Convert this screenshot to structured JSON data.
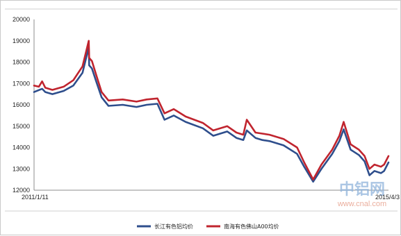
{
  "chart_data": {
    "type": "line",
    "title": "",
    "xlabel": "",
    "ylabel": "",
    "ylim": [
      12000,
      20000
    ],
    "yticks": [
      12000,
      13000,
      14000,
      15000,
      16000,
      17000,
      18000,
      19000,
      20000
    ],
    "x_start_label": "2011/1/11",
    "x_end_label": "2015/4/3",
    "grid": false,
    "legend_position": "bottom",
    "series": [
      {
        "name": "长江有色铝均价",
        "color": "#2e4e8c",
        "x": [
          "2011/1/11",
          "2011/2/15",
          "2011/3/1",
          "2011/4/1",
          "2011/5/20",
          "2011/7/1",
          "2011/8/10",
          "2011/9/6",
          "2011/9/8",
          "2011/9/20",
          "2011/10/10",
          "2011/11/1",
          "2011/12/1",
          "2012/2/1",
          "2012/4/1",
          "2012/5/15",
          "2012/7/1",
          "2012/8/1",
          "2012/9/10",
          "2012/11/1",
          "2013/1/15",
          "2013/3/1",
          "2013/5/1",
          "2013/6/10",
          "2013/7/10",
          "2013/7/25",
          "2013/9/1",
          "2013/10/1",
          "2013/11/1",
          "2014/1/1",
          "2014/3/1",
          "2014/4/1",
          "2014/5/10",
          "2014/6/15",
          "2014/8/1",
          "2014/9/1",
          "2014/9/20",
          "2014/10/20",
          "2014/11/25",
          "2014/12/20",
          "2015/1/10",
          "2015/2/1",
          "2015/3/1",
          "2015/3/15",
          "2015/4/3"
        ],
        "y": [
          16600,
          16750,
          16600,
          16500,
          16650,
          16900,
          17500,
          18700,
          17850,
          17700,
          17050,
          16350,
          15950,
          16000,
          15900,
          16000,
          16050,
          15300,
          15500,
          15200,
          14900,
          14550,
          14750,
          14450,
          14350,
          14800,
          14450,
          14350,
          14300,
          14100,
          13700,
          13100,
          12400,
          13000,
          13700,
          14300,
          14850,
          13900,
          13650,
          13350,
          12700,
          12900,
          12800,
          12900,
          13300
        ]
      },
      {
        "name": "南海有色佛山A00均价",
        "color": "#c0242e",
        "x": [
          "2011/1/11",
          "2011/2/1",
          "2011/2/15",
          "2011/3/1",
          "2011/4/1",
          "2011/5/20",
          "2011/7/1",
          "2011/8/10",
          "2011/9/6",
          "2011/9/8",
          "2011/9/20",
          "2011/10/10",
          "2011/11/1",
          "2011/12/1",
          "2012/2/1",
          "2012/4/1",
          "2012/5/15",
          "2012/7/1",
          "2012/8/1",
          "2012/9/10",
          "2012/11/1",
          "2013/1/15",
          "2013/3/1",
          "2013/5/1",
          "2013/6/10",
          "2013/7/10",
          "2013/7/25",
          "2013/9/1",
          "2013/10/1",
          "2013/11/1",
          "2014/1/1",
          "2014/3/1",
          "2014/4/1",
          "2014/5/10",
          "2014/6/15",
          "2014/8/1",
          "2014/9/1",
          "2014/9/20",
          "2014/10/20",
          "2014/11/25",
          "2014/12/20",
          "2015/1/10",
          "2015/2/1",
          "2015/3/1",
          "2015/3/15",
          "2015/4/3"
        ],
        "y": [
          16900,
          16850,
          17100,
          16800,
          16700,
          16850,
          17150,
          17800,
          19000,
          18200,
          18050,
          17350,
          16600,
          16200,
          16250,
          16150,
          16250,
          16300,
          15600,
          15800,
          15450,
          15150,
          14800,
          15000,
          14700,
          14600,
          15300,
          14700,
          14650,
          14600,
          14400,
          14000,
          13300,
          12500,
          13200,
          13900,
          14550,
          15200,
          14150,
          13900,
          13600,
          13000,
          13200,
          13100,
          13200,
          13600
        ]
      }
    ]
  },
  "watermark": {
    "main": "中铝网",
    "sub": "www.cnal.com"
  }
}
